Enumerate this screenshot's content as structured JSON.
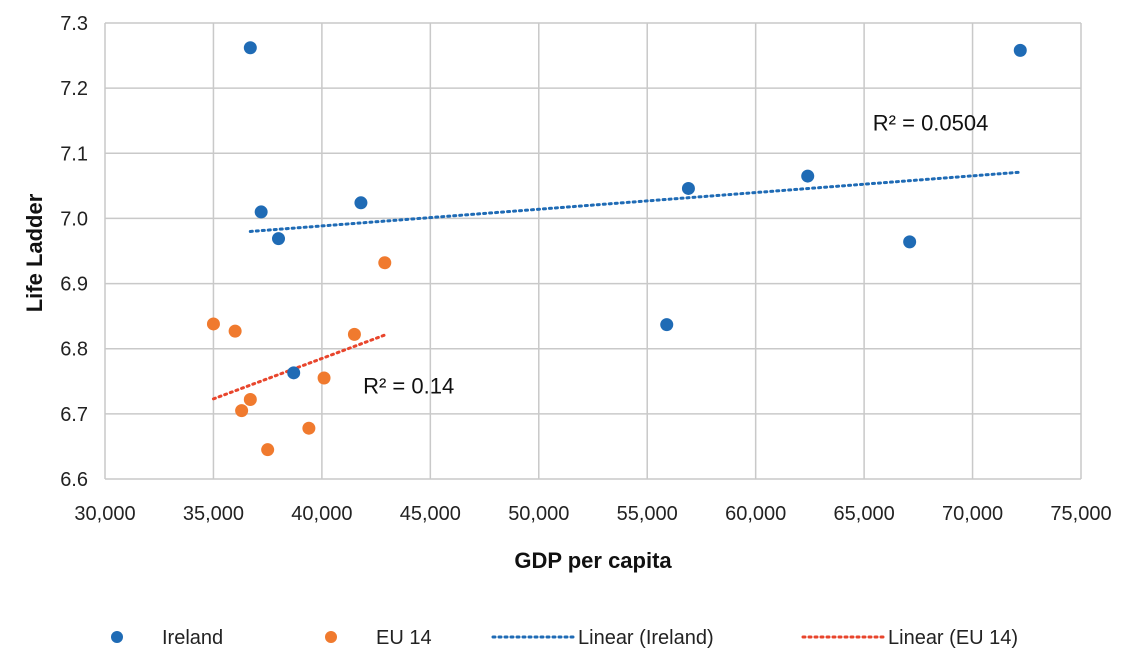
{
  "chart_data": {
    "type": "scatter",
    "title": "",
    "xlabel": "GDP per capita",
    "ylabel": "Life Ladder",
    "xlim": [
      30000,
      75000
    ],
    "ylim": [
      6.6,
      7.3
    ],
    "x_ticks": [
      {
        "value": 30000,
        "label": "30,000"
      },
      {
        "value": 35000,
        "label": "35,000"
      },
      {
        "value": 40000,
        "label": "40,000"
      },
      {
        "value": 45000,
        "label": "45,000"
      },
      {
        "value": 50000,
        "label": "50,000"
      },
      {
        "value": 55000,
        "label": "55,000"
      },
      {
        "value": 60000,
        "label": "60,000"
      },
      {
        "value": 65000,
        "label": "65,000"
      },
      {
        "value": 70000,
        "label": "70,000"
      },
      {
        "value": 75000,
        "label": "75,000"
      }
    ],
    "y_ticks": [
      {
        "value": 6.6,
        "label": "6.6"
      },
      {
        "value": 6.7,
        "label": "6.7"
      },
      {
        "value": 6.8,
        "label": "6.8"
      },
      {
        "value": 6.9,
        "label": "6.9"
      },
      {
        "value": 7.0,
        "label": "7.0"
      },
      {
        "value": 7.1,
        "label": "7.1"
      },
      {
        "value": 7.2,
        "label": "7.2"
      },
      {
        "value": 7.3,
        "label": "7.3"
      }
    ],
    "grid": true,
    "legend_position": "bottom",
    "series": [
      {
        "name": "Ireland",
        "color": "#1f6bb5",
        "points": [
          {
            "x": 36700,
            "y": 7.262
          },
          {
            "x": 37200,
            "y": 7.01
          },
          {
            "x": 38000,
            "y": 6.969
          },
          {
            "x": 38700,
            "y": 6.763
          },
          {
            "x": 41800,
            "y": 7.024
          },
          {
            "x": 55900,
            "y": 6.837
          },
          {
            "x": 56900,
            "y": 7.046
          },
          {
            "x": 62400,
            "y": 7.065
          },
          {
            "x": 67100,
            "y": 6.964
          },
          {
            "x": 72200,
            "y": 7.258
          }
        ]
      },
      {
        "name": "EU 14",
        "color": "#f07a2e",
        "points": [
          {
            "x": 35000,
            "y": 6.838
          },
          {
            "x": 36000,
            "y": 6.827
          },
          {
            "x": 36300,
            "y": 6.705
          },
          {
            "x": 36700,
            "y": 6.722
          },
          {
            "x": 37500,
            "y": 6.645
          },
          {
            "x": 39400,
            "y": 6.678
          },
          {
            "x": 40100,
            "y": 6.755
          },
          {
            "x": 41500,
            "y": 6.822
          },
          {
            "x": 42900,
            "y": 6.932
          }
        ]
      }
    ],
    "trendlines": [
      {
        "name": "Linear (Ireland)",
        "color": "#1f6bb5",
        "style": "dotted",
        "x": [
          36700,
          72200
        ],
        "y": [
          6.98,
          7.071
        ],
        "annotation": "R² = 0.0504"
      },
      {
        "name": "Linear (EU 14)",
        "color": "#e8452c",
        "style": "dotted",
        "x": [
          35000,
          42900
        ],
        "y": [
          6.723,
          6.821
        ],
        "annotation": "R² = 0.14"
      }
    ]
  }
}
